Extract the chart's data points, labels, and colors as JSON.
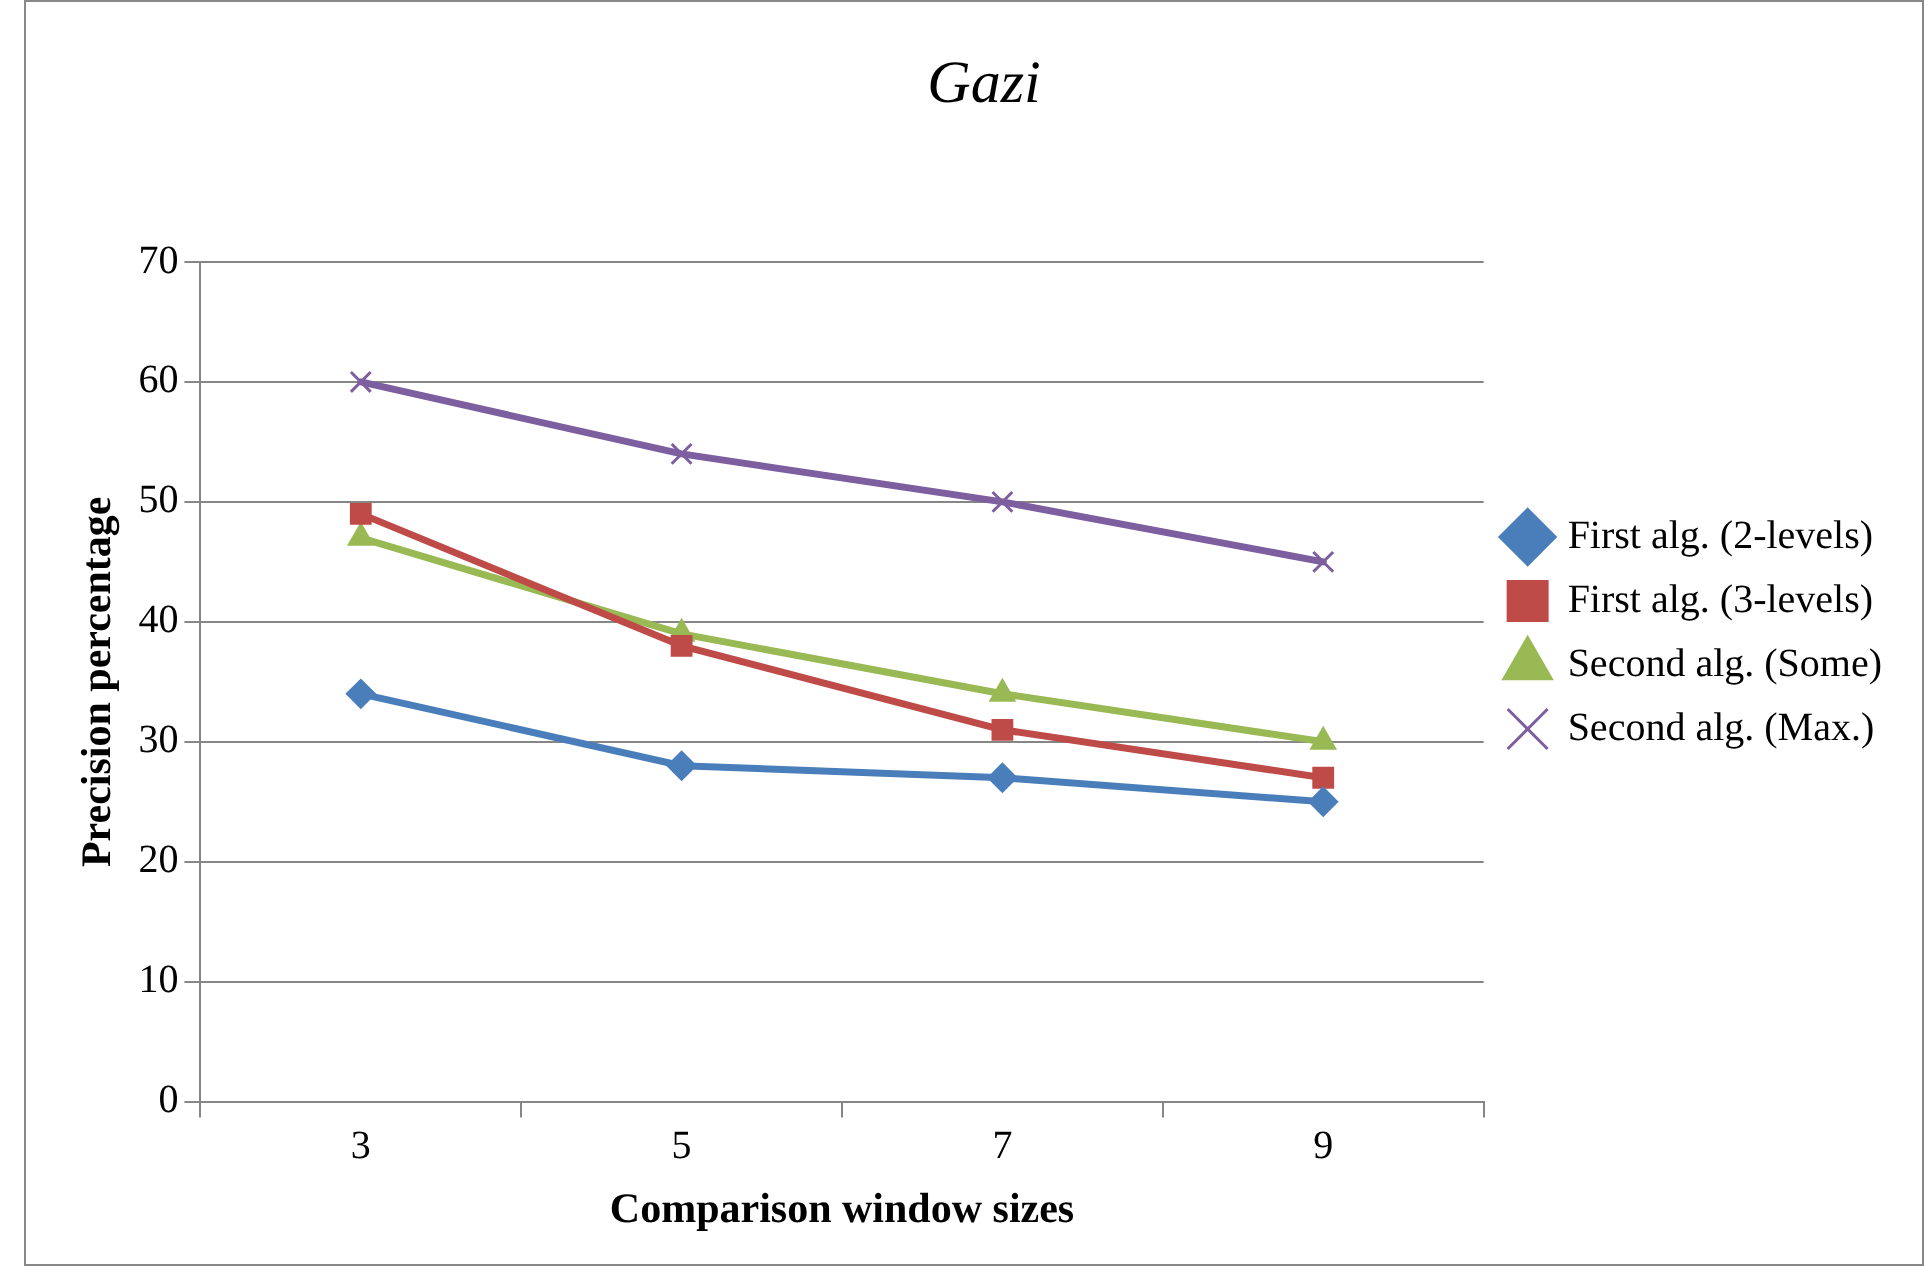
{
  "chart_data": {
    "type": "line",
    "title": "Gazi",
    "xlabel": "Comparison window sizes",
    "ylabel": "Precision percentage",
    "categories": [
      "3",
      "5",
      "7",
      "9"
    ],
    "series": [
      {
        "name": "First alg. (2-levels)",
        "color": "#4a7ebb",
        "values": [
          34,
          28,
          27,
          25
        ],
        "marker": "diamond"
      },
      {
        "name": "First alg. (3-levels)",
        "color": "#be4b48",
        "values": [
          49,
          38,
          31,
          27
        ],
        "marker": "square"
      },
      {
        "name": "Second alg. (Some)",
        "color": "#98b954",
        "values": [
          47,
          39,
          34,
          30
        ],
        "marker": "triangle"
      },
      {
        "name": "Second alg. (Max.)",
        "color": "#7d5fa0",
        "values": [
          60,
          54,
          50,
          45
        ],
        "marker": "cross"
      }
    ],
    "ylim": [
      0,
      70
    ],
    "yticks": [
      0,
      10,
      20,
      30,
      40,
      50,
      60,
      70
    ],
    "grid": "y",
    "legend": "right",
    "line_style": "solid"
  }
}
